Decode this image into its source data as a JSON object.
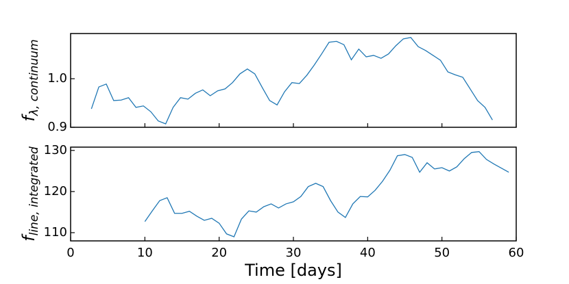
{
  "chart_data": [
    {
      "type": "line",
      "ylabel": "f",
      "ylabel_subscript": "λ, continuum",
      "ylim": [
        0.9,
        1.093
      ],
      "yticks": [
        0.9,
        {
          "value": 1,
          "label": "1.0"
        }
      ],
      "series": [
        {
          "color": "#1f77b4",
          "x": [
            2.8,
            3.8,
            4.8,
            5.8,
            6.8,
            7.8,
            8.8,
            9.8,
            10.8,
            11.8,
            12.8,
            13.8,
            14.8,
            15.8,
            16.8,
            17.8,
            18.8,
            19.8,
            20.8,
            21.8,
            22.8,
            23.8,
            24.8,
            25.8,
            26.8,
            27.8,
            28.8,
            29.8,
            30.8,
            31.8,
            32.8,
            33.8,
            34.8,
            35.8,
            36.8,
            37.8,
            38.8,
            39.8,
            40.8,
            41.8,
            42.8,
            43.8,
            44.8,
            45.8,
            46.8,
            47.8,
            48.8,
            49.8,
            50.8,
            51.8,
            52.8,
            53.8,
            54.8,
            55.8,
            56.8
          ],
          "values": [
            0.938,
            0.983,
            0.989,
            0.955,
            0.956,
            0.961,
            0.941,
            0.944,
            0.932,
            0.913,
            0.907,
            0.941,
            0.961,
            0.958,
            0.97,
            0.977,
            0.965,
            0.975,
            0.979,
            0.992,
            1.01,
            1.02,
            1.01,
            0.982,
            0.955,
            0.946,
            0.973,
            0.992,
            0.99,
            1.007,
            1.028,
            1.051,
            1.075,
            1.077,
            1.07,
            1.039,
            1.061,
            1.045,
            1.048,
            1.042,
            1.051,
            1.068,
            1.082,
            1.085,
            1.066,
            1.058,
            1.048,
            1.038,
            1.014,
            1.008,
            1.003,
            0.979,
            0.955,
            0.941,
            0.915
          ]
        }
      ]
    },
    {
      "type": "line",
      "ylabel": "f",
      "ylabel_subscript": "line, integrated",
      "xlabel": "Time [days]",
      "xlim": [
        0,
        60
      ],
      "xticks": [
        0,
        10,
        20,
        30,
        40,
        50,
        60
      ],
      "ylim": [
        108,
        130.8
      ],
      "yticks": [
        110,
        120,
        130
      ],
      "series": [
        {
          "color": "#1f77b4",
          "x": [
            10,
            11,
            12,
            13,
            14,
            15,
            16,
            17,
            18,
            19,
            20,
            21,
            22,
            23,
            24,
            25,
            26,
            27,
            28,
            29,
            30,
            31,
            32,
            33,
            34,
            35,
            36,
            37,
            38,
            39,
            40,
            41,
            42,
            43,
            44,
            45,
            46,
            47,
            48,
            49,
            50,
            51,
            52,
            53,
            54,
            55,
            56,
            57,
            58,
            59
          ],
          "values": [
            112.7,
            115.3,
            117.8,
            118.5,
            114.7,
            114.7,
            115.2,
            114.0,
            113.0,
            113.5,
            112.3,
            109.7,
            109.0,
            113.3,
            115.3,
            115.0,
            116.3,
            117.0,
            116.0,
            117.0,
            117.5,
            118.8,
            121.2,
            122.0,
            121.2,
            117.8,
            115.0,
            113.7,
            117.0,
            118.8,
            118.7,
            120.3,
            122.5,
            125.2,
            128.7,
            129.0,
            128.3,
            124.7,
            127.0,
            125.5,
            125.8,
            125.0,
            126.0,
            128.0,
            129.5,
            129.7,
            127.8,
            126.7,
            125.7,
            124.7
          ]
        }
      ]
    }
  ]
}
